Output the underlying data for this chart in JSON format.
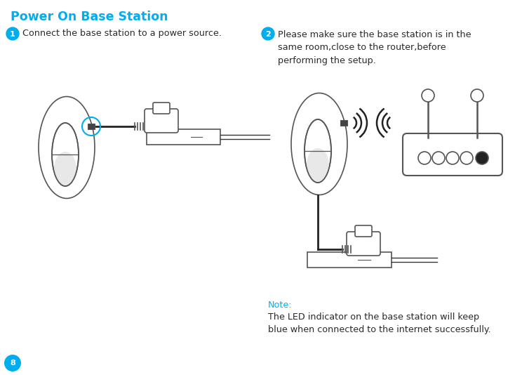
{
  "title": "Power On Base Station",
  "title_color": "#00AEEF",
  "title_fontsize": 12.5,
  "step1_num": "1",
  "step1_text": "Connect the base station to a power source.",
  "step2_num": "2",
  "step2_text": "Please make sure the base station is in the\nsame room,close to the router,before\nperforming the setup.",
  "note_label": "Note:",
  "note_text": "The LED indicator on the base station will keep\nblue when connected to the internet successfully.",
  "note_color": "#00AEEF",
  "page_num": "8",
  "bg_color": "#ffffff",
  "text_color": "#2a2a2a",
  "edge_color": "#555555",
  "step_badge_color": "#00AEEF",
  "step_badge_text_color": "#ffffff",
  "body_fontsize": 9.2,
  "note_fontsize": 9.2
}
